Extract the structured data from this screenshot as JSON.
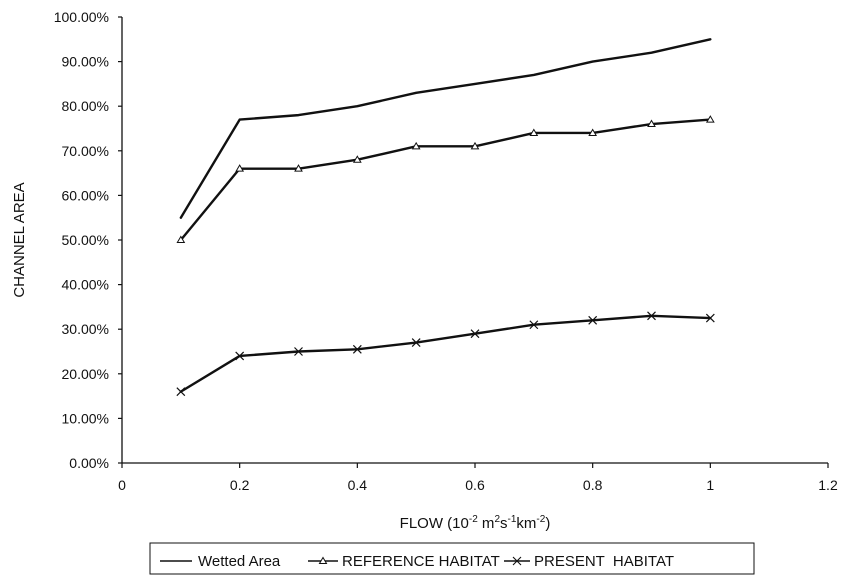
{
  "chart_data": {
    "type": "line",
    "x": [
      0.1,
      0.2,
      0.3,
      0.4,
      0.5,
      0.6,
      0.7,
      0.8,
      0.9,
      1.0
    ],
    "series": [
      {
        "name": "Wetted Area",
        "values": [
          55.0,
          77.0,
          78.0,
          80.0,
          83.0,
          85.0,
          87.0,
          90.0,
          92.0,
          95.0
        ],
        "marker": "none",
        "color": "#111111"
      },
      {
        "name": "REFERENCE HABITAT",
        "values": [
          50.0,
          66.0,
          66.0,
          68.0,
          71.0,
          71.0,
          74.0,
          74.0,
          76.0,
          77.0
        ],
        "marker": "triangle",
        "color": "#111111"
      },
      {
        "name": "PRESENT  HABITAT",
        "values": [
          16.0,
          24.0,
          25.0,
          25.5,
          27.0,
          29.0,
          31.0,
          32.0,
          33.0,
          32.5
        ],
        "marker": "x",
        "color": "#111111"
      }
    ],
    "xlabel": {
      "before": "FLOW (10",
      "exp1": "-2",
      "mid1": " m",
      "exp2": "2",
      "mid2": "s",
      "exp3": "-1",
      "mid3": "km",
      "exp4": "-2",
      "after": ")"
    },
    "ylabel": "CHANNEL AREA",
    "xlim": [
      0,
      1.2
    ],
    "ylim": [
      0,
      100
    ],
    "x_ticks": [
      0,
      0.2,
      0.4,
      0.6,
      0.8,
      1,
      1.2
    ],
    "x_tick_labels": [
      "0",
      "0.2",
      "0.4",
      "0.6",
      "0.8",
      "1",
      "1.2"
    ],
    "y_ticks": [
      0,
      10,
      20,
      30,
      40,
      50,
      60,
      70,
      80,
      90,
      100
    ],
    "y_tick_labels": [
      "0.00%",
      "10.00%",
      "20.00%",
      "30.00%",
      "40.00%",
      "50.00%",
      "60.00%",
      "70.00%",
      "80.00%",
      "90.00%",
      "100.00%"
    ],
    "grid": false,
    "legend_position": "bottom"
  }
}
